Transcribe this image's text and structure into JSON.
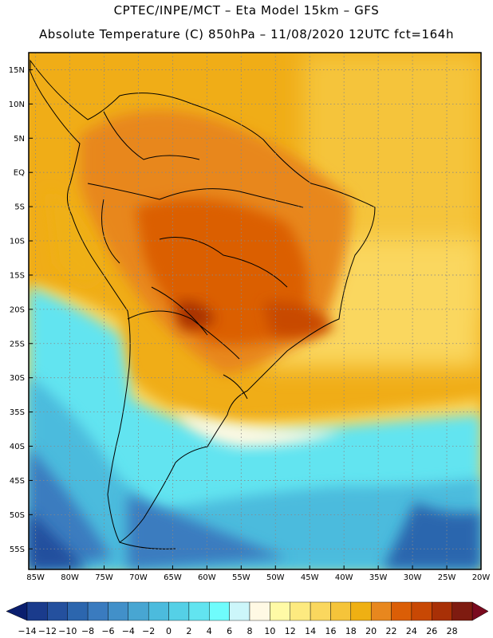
{
  "header": {
    "line1": "CPTEC/INPE/MCT –   Eta Model 15km – GFS",
    "line2": "Absolute Temperature (C) 850hPa – 11/08/2020 12UTC fct=164h"
  },
  "map": {
    "lat_labels": [
      "15N",
      "10N",
      "5N",
      "EQ",
      "5S",
      "10S",
      "15S",
      "20S",
      "25S",
      "30S",
      "35S",
      "40S",
      "45S",
      "50S",
      "55S"
    ],
    "lon_labels": [
      "85W",
      "80W",
      "75W",
      "70W",
      "65W",
      "60W",
      "55W",
      "50W",
      "45W",
      "40W",
      "35W",
      "30W",
      "25W",
      "20W"
    ]
  },
  "colorbar": {
    "labels": [
      "-14",
      "-12",
      "-10",
      "-8",
      "-6",
      "-4",
      "-2",
      "0",
      "2",
      "4",
      "6",
      "8",
      "10",
      "12",
      "14",
      "16",
      "18",
      "20",
      "22",
      "24",
      "26",
      "28"
    ],
    "colors": [
      "#1a3b8c",
      "#24509e",
      "#2c66ae",
      "#3a7bbf",
      "#4290c9",
      "#48a6d2",
      "#4cbbdd",
      "#55d0e6",
      "#62e4f0",
      "#6ffcfc",
      "#ccf6fa",
      "#fff9e4",
      "#fffaa6",
      "#fdea80",
      "#fad75e",
      "#f5c43a",
      "#efb013",
      "#e8871e",
      "#db5e06",
      "#c84804",
      "#a83006",
      "#7e1b10"
    ],
    "under_color": "#0a1e6e",
    "over_color": "#7a0a1e"
  }
}
